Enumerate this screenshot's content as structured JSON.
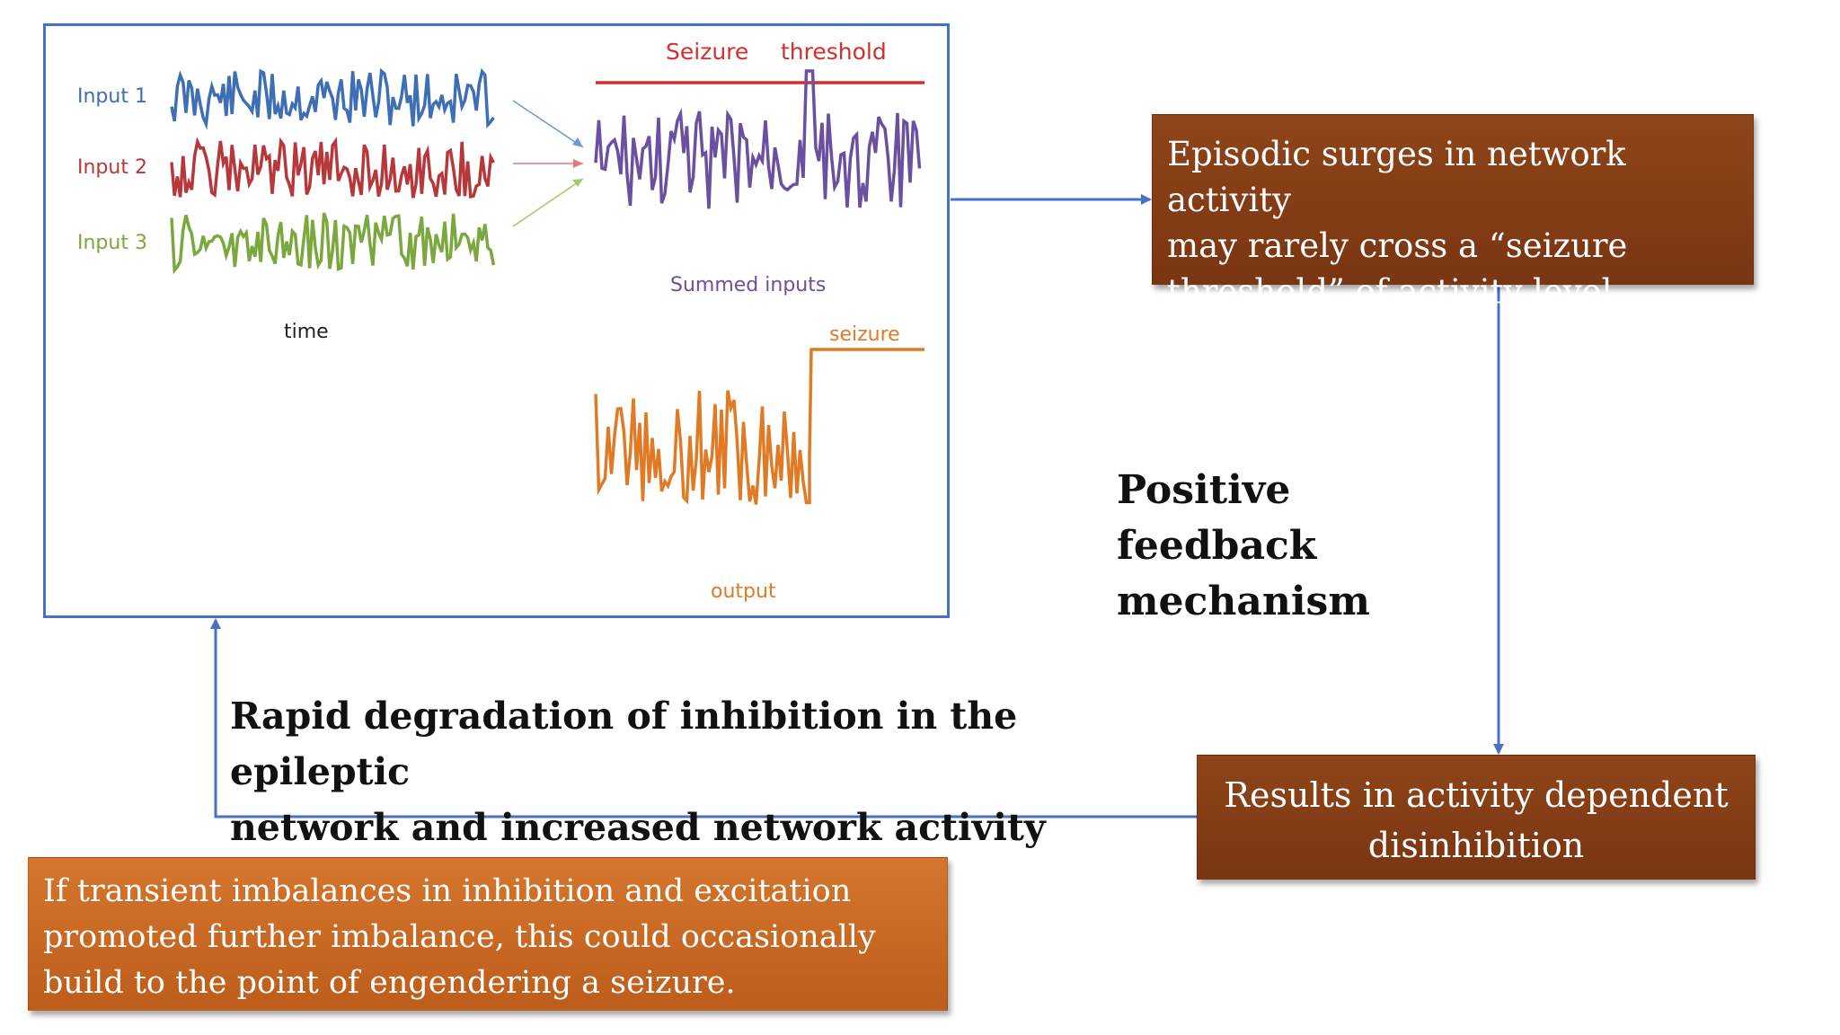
{
  "figure": {
    "input1_label": "Input 1",
    "input2_label": "Input 2",
    "input3_label": "Input 3",
    "time_label": "time",
    "seizure_word": "Seizure",
    "threshold_word": "threshold",
    "summed_label": "Summed inputs",
    "seizure_label": "seizure",
    "output_label": "output"
  },
  "boxes": {
    "episodic": [
      "Episodic surges in network activity",
      "may rarely cross a “seizure",
      "threshold” of activity level."
    ],
    "results": [
      "Results in activity dependent",
      "disinhibition"
    ],
    "imbalance": [
      "If transient imbalances in inhibition and excitation",
      "promoted further imbalance, this could occasionally",
      "build to the point of engendering a seizure."
    ]
  },
  "labels": {
    "positive_feedback": [
      "Positive feedback",
      "mechanism"
    ],
    "rapid_degradation": [
      "Rapid degradation of inhibition in the epileptic",
      "network and increased network activity"
    ]
  },
  "colors": {
    "frame_blue": "#4472c4",
    "input1": "#3e6fb5",
    "input2": "#b8373a",
    "input3": "#7aa83e",
    "summed": "#6b4fa0",
    "threshold": "#d32f2f",
    "output": "#e07a24",
    "box_brown": "#87401a",
    "box_orange": "#c9661f"
  }
}
